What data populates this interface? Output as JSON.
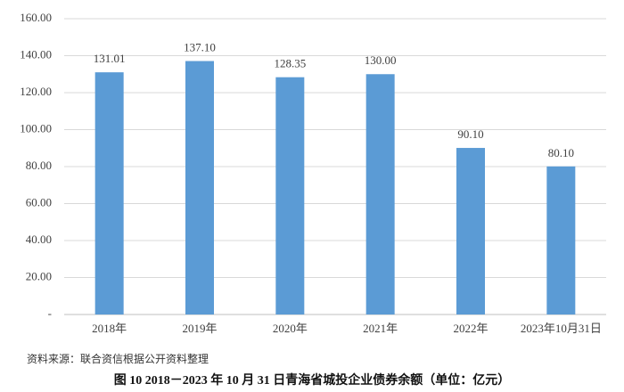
{
  "chart_data": {
    "type": "bar",
    "categories": [
      "2018年",
      "2019年",
      "2020年",
      "2021年",
      "2022年",
      "2023年10月31日"
    ],
    "values": [
      131.01,
      137.1,
      128.35,
      130,
      90.1,
      80.1
    ],
    "value_labels": [
      "131.01",
      "137.10",
      "128.35",
      "130.00",
      "90.10",
      "80.10"
    ],
    "color": "#5b9bd5",
    "ylim": [
      0,
      160
    ],
    "yticks": [
      {
        "value": 0,
        "label": "-"
      },
      {
        "value": 20,
        "label": "20.00"
      },
      {
        "value": 40,
        "label": "40.00"
      },
      {
        "value": 60,
        "label": "60.00"
      },
      {
        "value": 80,
        "label": "80.00"
      },
      {
        "value": 100,
        "label": "100.00"
      },
      {
        "value": 120,
        "label": "120.00"
      },
      {
        "value": 140,
        "label": "140.00"
      },
      {
        "value": 160,
        "label": "160.00"
      }
    ],
    "grid": true,
    "note": "资料来源：联合资信根据公开资料整理",
    "caption": "图 10   2018－2023 年 10 月 31 日青海省城投企业债券余额（单位：亿元）"
  }
}
